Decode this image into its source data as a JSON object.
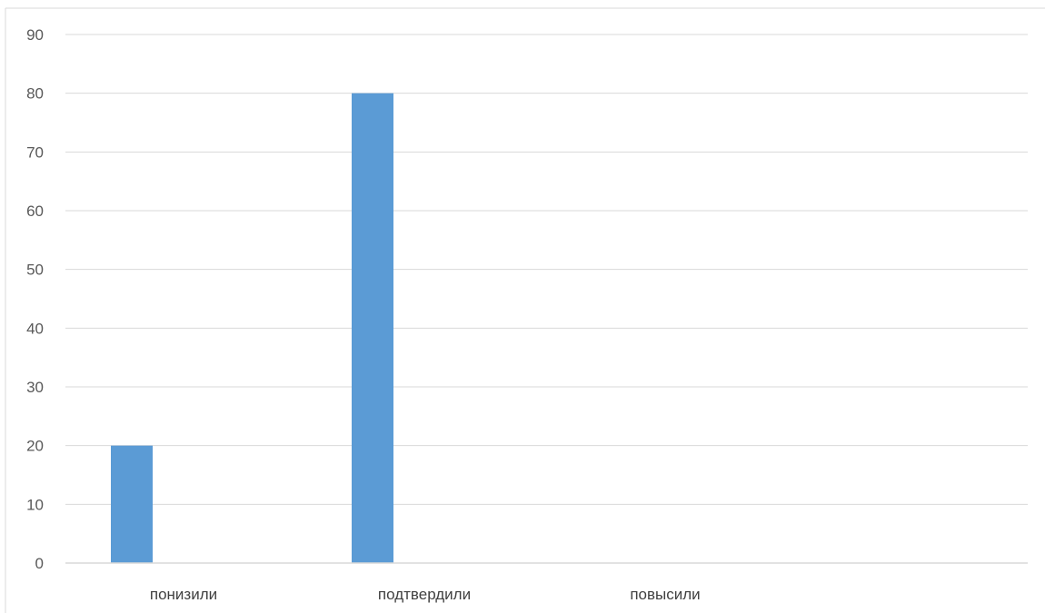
{
  "chart_data": {
    "type": "bar",
    "categories": [
      "понизили",
      "подтвердили",
      "повысили"
    ],
    "values": [
      20,
      80,
      0
    ],
    "title": "",
    "xlabel": "",
    "ylabel": "",
    "ylim": [
      0,
      90
    ],
    "yticks": [
      0,
      10,
      20,
      30,
      40,
      50,
      60,
      70,
      80,
      90
    ],
    "grid": true,
    "legend": "none",
    "colors": {
      "bar": "#5B9BD5",
      "grid": "#D9D9D9",
      "axis": "#D9D9D9",
      "frame": "#D9D9D9",
      "tick_text": "#595959",
      "category_text": "#404040"
    }
  }
}
